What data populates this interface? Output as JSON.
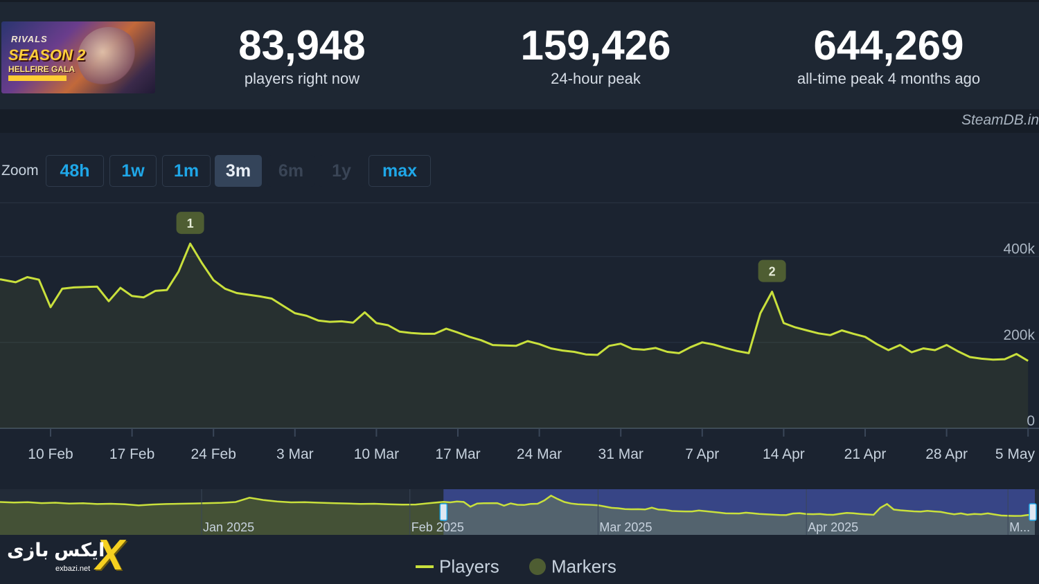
{
  "header": {
    "capsule": {
      "line1": "RIVALS",
      "line2": "SEASON 2",
      "line3": "HELLFIRE GALA"
    },
    "stats": [
      {
        "value": "83,948",
        "label": "players right now"
      },
      {
        "value": "159,426",
        "label": "24-hour peak"
      },
      {
        "value": "644,269",
        "label": "all-time peak 4 months ago"
      }
    ],
    "credit": "SteamDB.in"
  },
  "zoom": {
    "label": "Zoom",
    "buttons": [
      {
        "label": "48h",
        "state": "enabled"
      },
      {
        "label": "1w",
        "state": "enabled"
      },
      {
        "label": "1m",
        "state": "enabled"
      },
      {
        "label": "3m",
        "state": "active"
      },
      {
        "label": "6m",
        "state": "disabled"
      },
      {
        "label": "1y",
        "state": "disabled"
      },
      {
        "label": "max",
        "state": "enabled"
      }
    ]
  },
  "colors": {
    "background": "#1b2330",
    "line": "#c9e03c",
    "marker": "#4e5d32",
    "navigator_selection": "#3f4fa0",
    "link": "#1fa7e8"
  },
  "chart_data": {
    "type": "line",
    "title": "",
    "xlabel": "",
    "ylabel": "",
    "ylim": [
      0,
      530000
    ],
    "y_ticks": [
      0,
      200000,
      400000
    ],
    "y_tick_labels": [
      "0",
      "200k",
      "400k"
    ],
    "x_ticks": [
      "2025-02-10",
      "2025-02-17",
      "2025-02-24",
      "2025-03-03",
      "2025-03-10",
      "2025-03-17",
      "2025-03-24",
      "2025-03-31",
      "2025-04-07",
      "2025-04-14",
      "2025-04-21",
      "2025-04-28",
      "2025-05-05"
    ],
    "x_tick_labels": [
      "10 Feb",
      "17 Feb",
      "24 Feb",
      "3 Mar",
      "10 Mar",
      "17 Mar",
      "24 Mar",
      "31 Mar",
      "7 Apr",
      "14 Apr",
      "21 Apr",
      "28 Apr",
      "5 May"
    ],
    "grid": true,
    "legend_position": "bottom",
    "series": [
      {
        "name": "Players",
        "x": [
          "2025-02-06",
          "2025-02-07",
          "2025-02-08",
          "2025-02-09",
          "2025-02-10",
          "2025-02-11",
          "2025-02-12",
          "2025-02-14",
          "2025-02-15",
          "2025-02-16",
          "2025-02-17",
          "2025-02-18",
          "2025-02-19",
          "2025-02-20",
          "2025-02-21",
          "2025-02-22",
          "2025-02-23",
          "2025-02-24",
          "2025-02-25",
          "2025-02-26",
          "2025-02-28",
          "2025-03-01",
          "2025-03-02",
          "2025-03-03",
          "2025-03-04",
          "2025-03-05",
          "2025-03-06",
          "2025-03-07",
          "2025-03-08",
          "2025-03-09",
          "2025-03-10",
          "2025-03-11",
          "2025-03-12",
          "2025-03-13",
          "2025-03-14",
          "2025-03-15",
          "2025-03-16",
          "2025-03-17",
          "2025-03-18",
          "2025-03-19",
          "2025-03-20",
          "2025-03-21",
          "2025-03-22",
          "2025-03-23",
          "2025-03-24",
          "2025-03-25",
          "2025-03-26",
          "2025-03-27",
          "2025-03-28",
          "2025-03-29",
          "2025-03-30",
          "2025-03-31",
          "2025-04-01",
          "2025-04-02",
          "2025-04-03",
          "2025-04-04",
          "2025-04-05",
          "2025-04-06",
          "2025-04-07",
          "2025-04-08",
          "2025-04-09",
          "2025-04-10",
          "2025-04-11",
          "2025-04-12",
          "2025-04-13",
          "2025-04-14",
          "2025-04-15",
          "2025-04-16",
          "2025-04-17",
          "2025-04-18",
          "2025-04-19",
          "2025-04-20",
          "2025-04-21",
          "2025-04-22",
          "2025-04-23",
          "2025-04-24",
          "2025-04-25",
          "2025-04-26",
          "2025-04-27",
          "2025-04-28",
          "2025-04-29",
          "2025-04-30",
          "2025-05-01",
          "2025-05-02",
          "2025-05-03",
          "2025-05-04",
          "2025-05-05"
        ],
        "values": [
          347000,
          340000,
          352000,
          346000,
          282000,
          325000,
          328000,
          330000,
          296000,
          327000,
          308000,
          305000,
          320000,
          322000,
          365000,
          430000,
          385000,
          345000,
          325000,
          315000,
          307000,
          302000,
          285000,
          268000,
          262000,
          251000,
          248000,
          249000,
          246000,
          270000,
          245000,
          240000,
          225000,
          222000,
          220000,
          220000,
          232000,
          223000,
          213000,
          205000,
          194000,
          193000,
          192000,
          203000,
          196000,
          186000,
          181000,
          178000,
          172000,
          171000,
          192000,
          197000,
          185000,
          183000,
          187000,
          178000,
          175000,
          189000,
          200000,
          195000,
          187000,
          180000,
          175000,
          268000,
          318000,
          245000,
          235000,
          228000,
          221000,
          217000,
          228000,
          220000,
          213000,
          196000,
          182000,
          194000,
          177000,
          186000,
          182000,
          194000,
          179000,
          166000,
          162000,
          160000,
          161000,
          173000,
          157000
        ]
      }
    ],
    "markers": [
      {
        "label": "1",
        "x": "2025-02-22",
        "y": 430000
      },
      {
        "label": "2",
        "x": "2025-04-13",
        "y": 318000
      }
    ],
    "navigator": {
      "labels": [
        "Jan 2025",
        "Feb 2025",
        "Mar 2025",
        "Apr 2025",
        "M..."
      ],
      "selection": [
        "2025-02-06",
        "2025-05-05"
      ]
    },
    "legend": [
      "Players",
      "Markers"
    ]
  },
  "watermark": {
    "text": "ایکس بازی",
    "letter": "X",
    "site": "exbazi.net"
  }
}
